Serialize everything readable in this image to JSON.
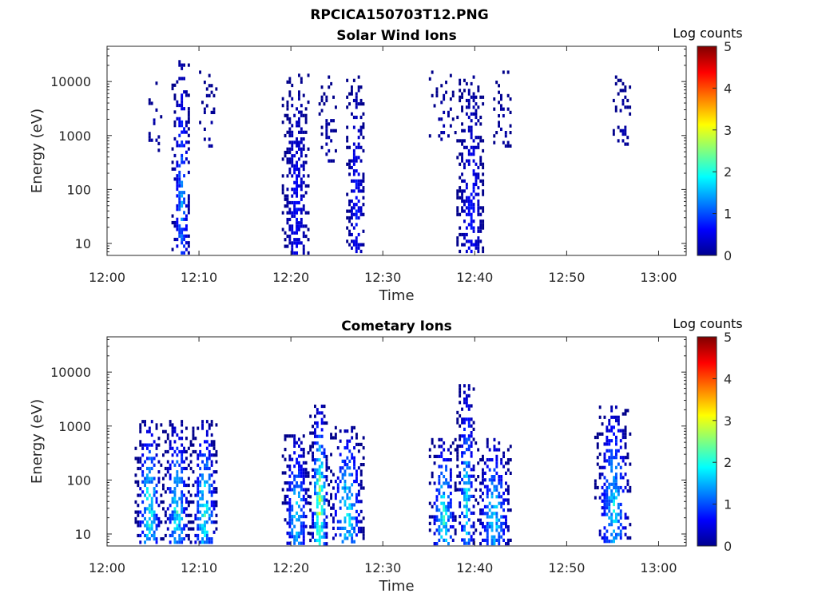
{
  "figure_title": "RPCICA150703T12.PNG",
  "colormap": "jet",
  "chart_data": [
    {
      "type": "heatmap",
      "title": "Solar Wind Ions",
      "xlabel": "Time",
      "ylabel": "Energy (eV)",
      "x_scale": "time",
      "y_scale": "log",
      "xlim": [
        "12:00",
        "13:03"
      ],
      "ylim": [
        6,
        45000
      ],
      "x_ticks": [
        "12:00",
        "12:10",
        "12:20",
        "12:30",
        "12:40",
        "12:50",
        "13:00"
      ],
      "y_ticks": [
        "10",
        "100",
        "1000",
        "10000"
      ],
      "colorbar": {
        "label": "Log counts",
        "range": [
          0,
          5
        ],
        "ticks": [
          "0",
          "1",
          "2",
          "3",
          "4",
          "5"
        ]
      },
      "clusters": [
        {
          "t_start": "12:04",
          "t_end": "12:05",
          "e_min": 500,
          "e_max": 10000,
          "max_log_count": 0.3,
          "density": 0.15
        },
        {
          "t_start": "12:07",
          "t_end": "12:08",
          "e_min": 6,
          "e_max": 25000,
          "max_log_count": 1.6,
          "density": 0.55
        },
        {
          "t_start": "12:10",
          "t_end": "12:11",
          "e_min": 600,
          "e_max": 16000,
          "max_log_count": 0.3,
          "density": 0.2
        },
        {
          "t_start": "12:19",
          "t_end": "12:21",
          "e_min": 6,
          "e_max": 14000,
          "max_log_count": 0.8,
          "density": 0.55
        },
        {
          "t_start": "12:23",
          "t_end": "12:24",
          "e_min": 300,
          "e_max": 13000,
          "max_log_count": 0.3,
          "density": 0.25
        },
        {
          "t_start": "12:26",
          "t_end": "12:27",
          "e_min": 6,
          "e_max": 13000,
          "max_log_count": 0.9,
          "density": 0.55
        },
        {
          "t_start": "12:35",
          "t_end": "12:37",
          "e_min": 800,
          "e_max": 16000,
          "max_log_count": 0.3,
          "density": 0.2
        },
        {
          "t_start": "12:38",
          "t_end": "12:40",
          "e_min": 6,
          "e_max": 13000,
          "max_log_count": 0.9,
          "density": 0.55
        },
        {
          "t_start": "12:42",
          "t_end": "12:43",
          "e_min": 600,
          "e_max": 16000,
          "max_log_count": 0.3,
          "density": 0.25
        },
        {
          "t_start": "12:55",
          "t_end": "12:56",
          "e_min": 600,
          "e_max": 13000,
          "max_log_count": 0.3,
          "density": 0.25
        }
      ]
    },
    {
      "type": "heatmap",
      "title": "Cometary Ions",
      "xlabel": "Time",
      "ylabel": "Energy (eV)",
      "x_scale": "time",
      "y_scale": "log",
      "xlim": [
        "12:00",
        "13:03"
      ],
      "ylim": [
        6,
        45000
      ],
      "x_ticks": [
        "12:00",
        "12:10",
        "12:20",
        "12:30",
        "12:40",
        "12:50",
        "13:00"
      ],
      "y_ticks": [
        "10",
        "100",
        "1000",
        "10000"
      ],
      "colorbar": {
        "label": "Log counts",
        "range": [
          0,
          5
        ],
        "ticks": [
          "0",
          "1",
          "2",
          "3",
          "4",
          "5"
        ]
      },
      "clusters": [
        {
          "t_start": "12:03",
          "t_end": "12:05",
          "e_min": 6,
          "e_max": 1300,
          "max_log_count": 2.6,
          "density": 0.6
        },
        {
          "t_start": "12:06",
          "t_end": "12:08",
          "e_min": 6,
          "e_max": 1300,
          "max_log_count": 2.4,
          "density": 0.6
        },
        {
          "t_start": "12:09",
          "t_end": "12:11",
          "e_min": 6,
          "e_max": 1300,
          "max_log_count": 2.5,
          "density": 0.6
        },
        {
          "t_start": "12:19",
          "t_end": "12:21",
          "e_min": 6,
          "e_max": 700,
          "max_log_count": 2.2,
          "density": 0.6
        },
        {
          "t_start": "12:22",
          "t_end": "12:23",
          "e_min": 6,
          "e_max": 2500,
          "max_log_count": 3.5,
          "density": 0.7
        },
        {
          "t_start": "12:24",
          "t_end": "12:27",
          "e_min": 6,
          "e_max": 1000,
          "max_log_count": 2.4,
          "density": 0.6
        },
        {
          "t_start": "12:35",
          "t_end": "12:37",
          "e_min": 6,
          "e_max": 600,
          "max_log_count": 2.5,
          "density": 0.6
        },
        {
          "t_start": "12:38",
          "t_end": "12:39",
          "e_min": 6,
          "e_max": 6000,
          "max_log_count": 2.3,
          "density": 0.6
        },
        {
          "t_start": "12:40",
          "t_end": "12:43",
          "e_min": 6,
          "e_max": 600,
          "max_log_count": 2.2,
          "density": 0.6
        },
        {
          "t_start": "12:53",
          "t_end": "12:56",
          "e_min": 6,
          "e_max": 2400,
          "max_log_count": 2.2,
          "density": 0.55
        }
      ]
    }
  ]
}
